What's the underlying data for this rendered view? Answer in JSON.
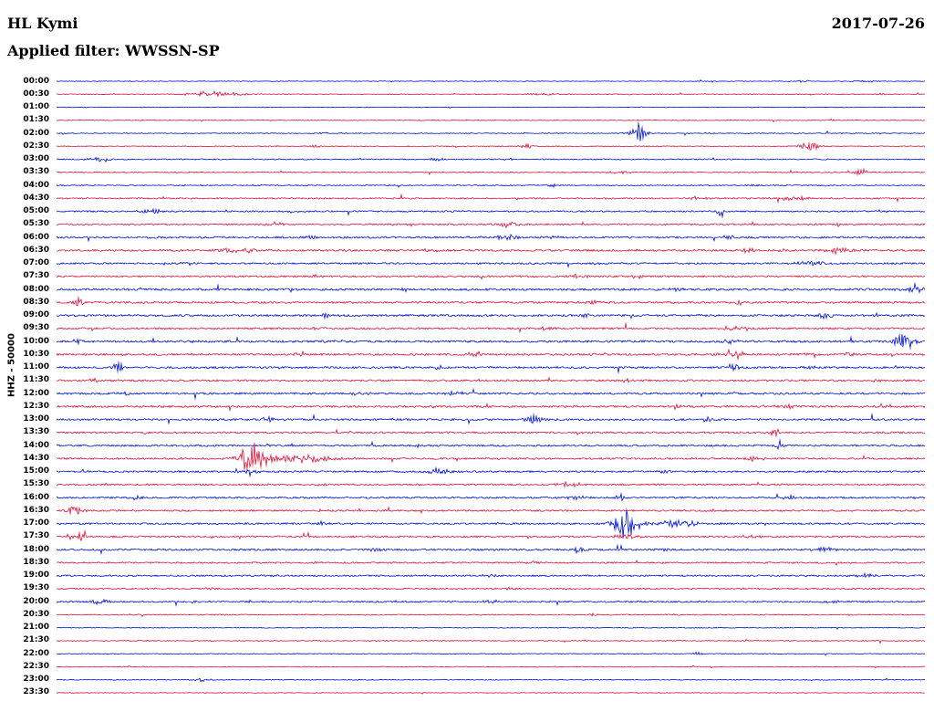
{
  "header": {
    "station": "HL Kymi",
    "date": "2017-07-26",
    "filter_label": "Applied filter: WWSSN-SP"
  },
  "y_axis_label": "HHZ - 50000",
  "chart_data": {
    "type": "line",
    "subtype": "helicorder-dayplot",
    "title": "HL Kymi",
    "date": "2017-07-26",
    "filter": "WWSSN-SP",
    "channel": "HHZ",
    "scale": 50000,
    "minutes_per_row": 30,
    "x_range_minutes": [
      0,
      30
    ],
    "legend_position": "none",
    "grid": false,
    "colors": {
      "blue": "#0012d2",
      "red": "#dc143c"
    },
    "rows": [
      {
        "t": "00:00",
        "c": "blue",
        "n": 0.35,
        "ev": [
          [
            0.86,
            1.0,
            6
          ],
          [
            0.93,
            1.2,
            8
          ]
        ]
      },
      {
        "t": "00:30",
        "c": "red",
        "n": 0.4,
        "ev": [
          [
            0.182,
            2.5,
            22
          ],
          [
            0.56,
            1.3,
            10
          ],
          [
            0.95,
            1.0,
            5
          ]
        ]
      },
      {
        "t": "01:00",
        "c": "blue",
        "n": 0.3,
        "ev": []
      },
      {
        "t": "01:30",
        "c": "red",
        "n": 0.35,
        "ev": [
          [
            0.895,
            1.5,
            4
          ]
        ]
      },
      {
        "t": "02:00",
        "c": "blue",
        "n": 0.45,
        "ev": [
          [
            0.31,
            1.0,
            5
          ],
          [
            0.67,
            8.5,
            6
          ]
        ]
      },
      {
        "t": "02:30",
        "c": "red",
        "n": 0.5,
        "ev": [
          [
            0.3,
            1.2,
            8
          ],
          [
            0.54,
            2.5,
            5
          ],
          [
            0.868,
            6.5,
            7
          ]
        ]
      },
      {
        "t": "03:00",
        "c": "blue",
        "n": 0.55,
        "ev": [
          [
            0.05,
            2.5,
            10
          ],
          [
            0.44,
            1.5,
            8
          ],
          [
            0.52,
            1.5,
            4
          ]
        ]
      },
      {
        "t": "03:30",
        "c": "red",
        "n": 0.5,
        "ev": [
          [
            0.65,
            1.8,
            10
          ],
          [
            0.927,
            3.5,
            5
          ]
        ]
      },
      {
        "t": "04:00",
        "c": "blue",
        "n": 0.55,
        "ev": [
          [
            0.57,
            2.2,
            4
          ],
          [
            0.8,
            1.2,
            6
          ]
        ]
      },
      {
        "t": "04:30",
        "c": "red",
        "n": 0.7,
        "ev": [
          [
            0.74,
            1.5,
            8
          ],
          [
            0.85,
            1.8,
            14
          ]
        ]
      },
      {
        "t": "05:00",
        "c": "blue",
        "n": 0.8,
        "ev": [
          [
            0.113,
            2.0,
            10
          ],
          [
            0.27,
            1.3,
            6
          ],
          [
            0.765,
            5.5,
            3
          ],
          [
            0.95,
            1.5,
            6
          ]
        ]
      },
      {
        "t": "05:30",
        "c": "red",
        "n": 0.8,
        "ev": [
          [
            0.25,
            2.5,
            8
          ],
          [
            0.52,
            1.8,
            12
          ],
          [
            0.8,
            1.5,
            8
          ],
          [
            0.9,
            1.5,
            6
          ]
        ]
      },
      {
        "t": "06:00",
        "c": "blue",
        "n": 1.0,
        "ev": [
          [
            0.297,
            2.2,
            6
          ],
          [
            0.52,
            2.0,
            16
          ],
          [
            0.575,
            1.8,
            6
          ],
          [
            0.775,
            1.6,
            6
          ],
          [
            0.8,
            1.6,
            4
          ]
        ]
      },
      {
        "t": "06:30",
        "c": "red",
        "n": 1.0,
        "ev": [
          [
            0.21,
            2.2,
            18
          ],
          [
            0.43,
            1.4,
            6
          ],
          [
            0.795,
            2.8,
            6
          ],
          [
            0.835,
            2.0,
            5
          ],
          [
            0.9,
            3.0,
            12
          ]
        ]
      },
      {
        "t": "07:00",
        "c": "blue",
        "n": 0.9,
        "ev": [
          [
            0.15,
            2.5,
            4
          ],
          [
            0.62,
            1.2,
            6
          ],
          [
            0.87,
            1.8,
            14
          ]
        ]
      },
      {
        "t": "07:30",
        "c": "red",
        "n": 0.9,
        "ev": [
          [
            0.3,
            1.2,
            6
          ],
          [
            0.6,
            1.8,
            8
          ],
          [
            0.67,
            1.4,
            6
          ]
        ]
      },
      {
        "t": "08:00",
        "c": "blue",
        "n": 1.1,
        "ev": [
          [
            0.4,
            1.3,
            6
          ],
          [
            0.71,
            1.6,
            8
          ],
          [
            0.985,
            4.5,
            8
          ]
        ]
      },
      {
        "t": "08:30",
        "c": "red",
        "n": 1.0,
        "ev": [
          [
            0.024,
            4.5,
            4
          ],
          [
            0.62,
            1.8,
            8
          ],
          [
            0.785,
            1.8,
            6
          ]
        ]
      },
      {
        "t": "09:00",
        "c": "blue",
        "n": 1.1,
        "ev": [
          [
            0.31,
            1.8,
            6
          ],
          [
            0.61,
            1.8,
            8
          ],
          [
            0.885,
            3.5,
            6
          ]
        ]
      },
      {
        "t": "09:30",
        "c": "red",
        "n": 1.0,
        "ev": [
          [
            0.3,
            1.3,
            6
          ],
          [
            0.565,
            2.0,
            8
          ],
          [
            0.78,
            3.5,
            8
          ]
        ]
      },
      {
        "t": "10:00",
        "c": "blue",
        "n": 1.1,
        "ev": [
          [
            0.024,
            3.0,
            5
          ],
          [
            0.32,
            1.6,
            8
          ],
          [
            0.775,
            2.0,
            6
          ],
          [
            0.975,
            6.5,
            9
          ]
        ]
      },
      {
        "t": "10:30",
        "c": "red",
        "n": 1.0,
        "ev": [
          [
            0.28,
            2.2,
            5
          ],
          [
            0.48,
            1.6,
            6
          ],
          [
            0.78,
            5.5,
            8
          ],
          [
            0.87,
            2.0,
            6
          ],
          [
            0.912,
            2.2,
            5
          ]
        ]
      },
      {
        "t": "11:00",
        "c": "blue",
        "n": 1.0,
        "ev": [
          [
            0.071,
            3.5,
            6
          ],
          [
            0.44,
            1.6,
            8
          ],
          [
            0.78,
            4.5,
            4
          ],
          [
            0.87,
            1.8,
            6
          ]
        ]
      },
      {
        "t": "11:30",
        "c": "red",
        "n": 0.95,
        "ev": [
          [
            0.045,
            2.8,
            4
          ],
          [
            0.66,
            1.6,
            10
          ],
          [
            0.945,
            1.6,
            6
          ]
        ]
      },
      {
        "t": "12:00",
        "c": "blue",
        "n": 1.0,
        "ev": [
          [
            0.077,
            1.8,
            6
          ],
          [
            0.35,
            1.4,
            8
          ],
          [
            0.46,
            2.8,
            6
          ]
        ]
      },
      {
        "t": "12:30",
        "c": "red",
        "n": 1.0,
        "ev": [
          [
            0.712,
            2.6,
            6
          ],
          [
            0.84,
            1.8,
            10
          ],
          [
            0.955,
            2.0,
            6
          ]
        ]
      },
      {
        "t": "13:00",
        "c": "blue",
        "n": 1.0,
        "ev": [
          [
            0.245,
            2.4,
            8
          ],
          [
            0.55,
            3.5,
            6
          ],
          [
            0.75,
            2.0,
            5
          ]
        ]
      },
      {
        "t": "13:30",
        "c": "red",
        "n": 0.95,
        "ev": [
          [
            0.6,
            1.4,
            8
          ],
          [
            0.828,
            4.0,
            4
          ]
        ]
      },
      {
        "t": "14:00",
        "c": "blue",
        "n": 0.95,
        "ev": [
          [
            0.42,
            1.3,
            6
          ],
          [
            0.833,
            5.0,
            3
          ]
        ]
      },
      {
        "t": "14:30",
        "c": "red",
        "n": 0.9,
        "ev": [
          [
            0.224,
            14,
            10
          ],
          [
            0.28,
            4,
            28
          ],
          [
            0.8,
            2.2,
            10
          ]
        ]
      },
      {
        "t": "15:00",
        "c": "blue",
        "n": 0.9,
        "ev": [
          [
            0.224,
            2.0,
            8
          ],
          [
            0.44,
            3.0,
            10
          ],
          [
            0.7,
            1.4,
            6
          ]
        ]
      },
      {
        "t": "15:30",
        "c": "red",
        "n": 0.85,
        "ev": [
          [
            0.3,
            1.2,
            6
          ],
          [
            0.59,
            2.2,
            10
          ]
        ]
      },
      {
        "t": "16:00",
        "c": "blue",
        "n": 0.9,
        "ev": [
          [
            0.092,
            2.2,
            5
          ],
          [
            0.6,
            1.5,
            8
          ],
          [
            0.649,
            4.5,
            3
          ],
          [
            0.843,
            1.8,
            6
          ]
        ]
      },
      {
        "t": "16:30",
        "c": "red",
        "n": 0.85,
        "ev": [
          [
            0.022,
            4.0,
            9
          ],
          [
            0.31,
            1.4,
            6
          ],
          [
            0.755,
            1.6,
            6
          ]
        ]
      },
      {
        "t": "17:00",
        "c": "blue",
        "n": 0.9,
        "ev": [
          [
            0.307,
            2.5,
            4
          ],
          [
            0.654,
            13,
            9
          ],
          [
            0.71,
            3.5,
            22
          ]
        ]
      },
      {
        "t": "17:30",
        "c": "red",
        "n": 0.9,
        "ev": [
          [
            0.024,
            4.5,
            6
          ],
          [
            0.655,
            2.0,
            10
          ],
          [
            0.8,
            1.4,
            8
          ]
        ]
      },
      {
        "t": "18:00",
        "c": "blue",
        "n": 0.95,
        "ev": [
          [
            0.366,
            1.8,
            5
          ],
          [
            0.6,
            2.5,
            6
          ],
          [
            0.7,
            1.5,
            6
          ],
          [
            0.885,
            3.0,
            8
          ]
        ]
      },
      {
        "t": "18:30",
        "c": "red",
        "n": 0.8,
        "ev": [
          [
            0.3,
            1.0,
            6
          ],
          [
            0.55,
            1.2,
            6
          ]
        ]
      },
      {
        "t": "19:00",
        "c": "blue",
        "n": 0.85,
        "ev": [
          [
            0.25,
            1.2,
            5
          ],
          [
            0.5,
            1.4,
            6
          ],
          [
            0.932,
            2.2,
            6
          ]
        ]
      },
      {
        "t": "19:30",
        "c": "red",
        "n": 0.75,
        "ev": [
          [
            0.176,
            2.2,
            4
          ],
          [
            0.52,
            1.2,
            6
          ]
        ]
      },
      {
        "t": "20:00",
        "c": "blue",
        "n": 0.8,
        "ev": [
          [
            0.05,
            3.2,
            7
          ],
          [
            0.16,
            1.8,
            4
          ],
          [
            0.224,
            1.6,
            4
          ],
          [
            0.5,
            1.8,
            6
          ],
          [
            0.895,
            1.6,
            6
          ]
        ]
      },
      {
        "t": "20:30",
        "c": "red",
        "n": 0.5,
        "ev": [
          [
            0.62,
            1.0,
            5
          ]
        ]
      },
      {
        "t": "21:00",
        "c": "blue",
        "n": 0.45,
        "ev": [
          [
            0.73,
            1.0,
            5
          ]
        ]
      },
      {
        "t": "21:30",
        "c": "red",
        "n": 0.45,
        "ev": [
          [
            0.035,
            1.6,
            3
          ]
        ]
      },
      {
        "t": "22:00",
        "c": "blue",
        "n": 0.4,
        "ev": [
          [
            0.738,
            2.0,
            4
          ]
        ]
      },
      {
        "t": "22:30",
        "c": "red",
        "n": 0.4,
        "ev": []
      },
      {
        "t": "23:00",
        "c": "blue",
        "n": 0.4,
        "ev": [
          [
            0.166,
            2.2,
            6
          ]
        ]
      },
      {
        "t": "23:30",
        "c": "red",
        "n": 0.35,
        "ev": []
      }
    ]
  }
}
